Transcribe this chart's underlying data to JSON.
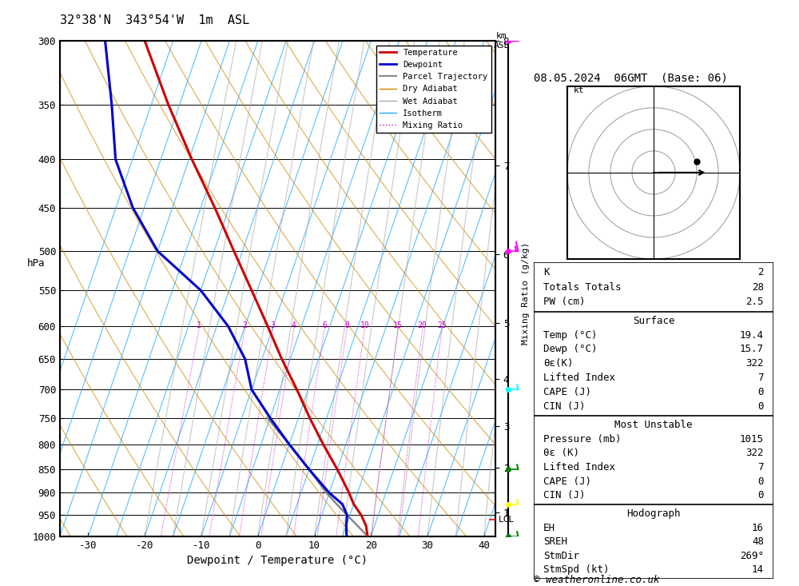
{
  "title_left": "32°38'N  343°54'W  1m  ASL",
  "title_right": "08.05.2024  06GMT  (Base: 06)",
  "copyright": "© weatheronline.co.uk",
  "ylabel_left": "hPa",
  "xlabel": "Dewpoint / Temperature (°C)",
  "mixing_ratio_label": "Mixing Ratio (g/kg)",
  "pressure_levels": [
    300,
    350,
    400,
    450,
    500,
    550,
    600,
    650,
    700,
    750,
    800,
    850,
    900,
    950,
    1000
  ],
  "temp_xlim": [
    -35,
    42
  ],
  "temp_xticks": [
    -30,
    -20,
    -10,
    0,
    10,
    20,
    30,
    40
  ],
  "km_ticks": [
    1,
    2,
    3,
    4,
    5,
    6,
    7,
    8
  ],
  "km_pressures": [
    925,
    800,
    700,
    600,
    500,
    400,
    300,
    200
  ],
  "mixing_ratio_values": [
    1,
    2,
    3,
    4,
    6,
    8,
    10,
    15,
    20,
    25
  ],
  "temperature_profile": {
    "pressure": [
      1000,
      975,
      950,
      925,
      900,
      850,
      800,
      750,
      700,
      650,
      600,
      550,
      500,
      450,
      400,
      350,
      300
    ],
    "temp": [
      19.4,
      18.5,
      17.0,
      15.0,
      13.5,
      10.0,
      6.0,
      2.0,
      -2.0,
      -6.5,
      -11.0,
      -16.0,
      -21.5,
      -27.5,
      -34.5,
      -42.0,
      -50.0
    ]
  },
  "dewpoint_profile": {
    "pressure": [
      1000,
      975,
      950,
      925,
      900,
      850,
      800,
      750,
      700,
      650,
      600,
      550,
      500,
      450,
      400,
      350,
      300
    ],
    "temp": [
      15.7,
      15.0,
      14.5,
      13.0,
      10.0,
      5.0,
      0.0,
      -5.0,
      -10.0,
      -13.0,
      -18.0,
      -25.0,
      -35.0,
      -42.0,
      -48.0,
      -52.0,
      -57.0
    ]
  },
  "parcel_trajectory": {
    "pressure": [
      1000,
      975,
      950,
      925,
      900,
      850,
      800,
      750
    ],
    "temp": [
      19.4,
      17.0,
      14.5,
      12.0,
      9.5,
      5.0,
      0.0,
      -5.5
    ]
  },
  "lcl_pressure": 960,
  "wind_barbs": [
    {
      "pressure": 300,
      "speed": 50,
      "color": "magenta"
    },
    {
      "pressure": 500,
      "speed": 15,
      "color": "magenta"
    },
    {
      "pressure": 700,
      "speed": 5,
      "color": "cyan"
    },
    {
      "pressure": 850,
      "speed": 5,
      "color": "green"
    },
    {
      "pressure": 925,
      "speed": 5,
      "color": "yellow"
    },
    {
      "pressure": 1000,
      "speed": 5,
      "color": "green"
    }
  ],
  "stats_kpw": [
    [
      "K",
      "2"
    ],
    [
      "Totals Totals",
      "28"
    ],
    [
      "PW (cm)",
      "2.5"
    ]
  ],
  "stats_surface_title": "Surface",
  "stats_surface": [
    [
      "Temp (°C)",
      "19.4"
    ],
    [
      "Dewp (°C)",
      "15.7"
    ],
    [
      "θε(K)",
      "322"
    ],
    [
      "Lifted Index",
      "7"
    ],
    [
      "CAPE (J)",
      "0"
    ],
    [
      "CIN (J)",
      "0"
    ]
  ],
  "stats_mu_title": "Most Unstable",
  "stats_mu": [
    [
      "Pressure (mb)",
      "1015"
    ],
    [
      "θε (K)",
      "322"
    ],
    [
      "Lifted Index",
      "7"
    ],
    [
      "CAPE (J)",
      "0"
    ],
    [
      "CIN (J)",
      "0"
    ]
  ],
  "stats_hodo_title": "Hodograph",
  "stats_hodo": [
    [
      "EH",
      "16"
    ],
    [
      "SREH",
      "48"
    ],
    [
      "StmDir",
      "269°"
    ],
    [
      "StmSpd (kt)",
      "14"
    ]
  ],
  "colors": {
    "temperature": "#cc0000",
    "dewpoint": "#0000cc",
    "parcel": "#888888",
    "dry_adiabat": "#cc8800",
    "wet_adiabat": "#aaaaaa",
    "isotherm": "#22aaff",
    "mixing_ratio": "#cc00cc"
  }
}
